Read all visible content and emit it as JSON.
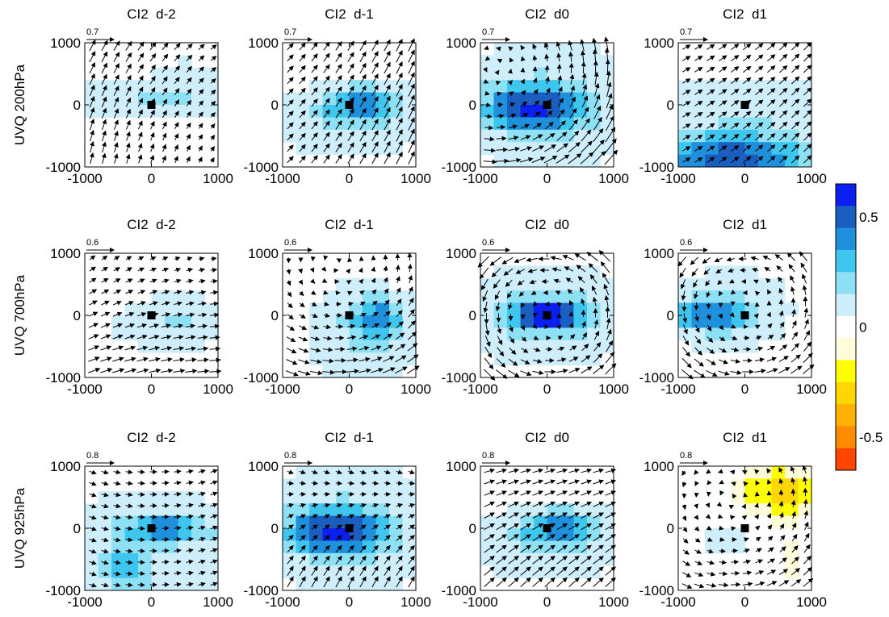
{
  "chart_data": {
    "type": "heatmap",
    "subtype": "vector-composite-panels",
    "rows": [
      {
        "label": "UVQ 200hPa",
        "ref_vector": "0.7"
      },
      {
        "label": "UVQ 700hPa",
        "ref_vector": "0.6"
      },
      {
        "label": "UVQ 925hPa",
        "ref_vector": "0.8"
      }
    ],
    "columns": [
      "CI2  d-2",
      "CI2  d-1",
      "CI2  d0",
      "CI2  d1"
    ],
    "axis": {
      "xlim": [
        -1000,
        1000
      ],
      "ylim": [
        -1000,
        1000
      ],
      "xticks": [
        "-1000",
        "0",
        "1000"
      ],
      "yticks": [
        "1000",
        "0",
        "-1000"
      ]
    },
    "grid": false,
    "center_marker": "black square at (0, 0)",
    "vectors": "wind anomaly arrows on a regular grid, scaled to the reference vector printed above each panel",
    "colorbar": {
      "placement": "right",
      "labels": [
        "0.5",
        "0",
        "-0.5"
      ],
      "levels": [
        -0.5,
        -0.4,
        -0.3,
        -0.2,
        -0.1,
        0,
        0.1,
        0.2,
        0.3,
        0.4,
        0.5
      ],
      "colors": [
        "#ff4500",
        "#ff8c00",
        "#ffb000",
        "#ffd700",
        "#ffff00",
        "#fffcdc",
        "#ffffff",
        "#cdeefa",
        "#8ee0f4",
        "#3ec6ef",
        "#1e90dc",
        "#1a5fbf",
        "#0a1ff0"
      ]
    },
    "panel_patterns": [
      [
        "moist-north-weak",
        "moist-center-weak",
        "moist-center-strong",
        "moist-south-strong"
      ],
      [
        "moist-east-weak",
        "moist-east-medium",
        "moist-center-max",
        "moist-west-medium"
      ],
      [
        "moist-center-medium",
        "moist-center-strong",
        "moist-center-weak",
        "dry-northeast"
      ]
    ]
  }
}
